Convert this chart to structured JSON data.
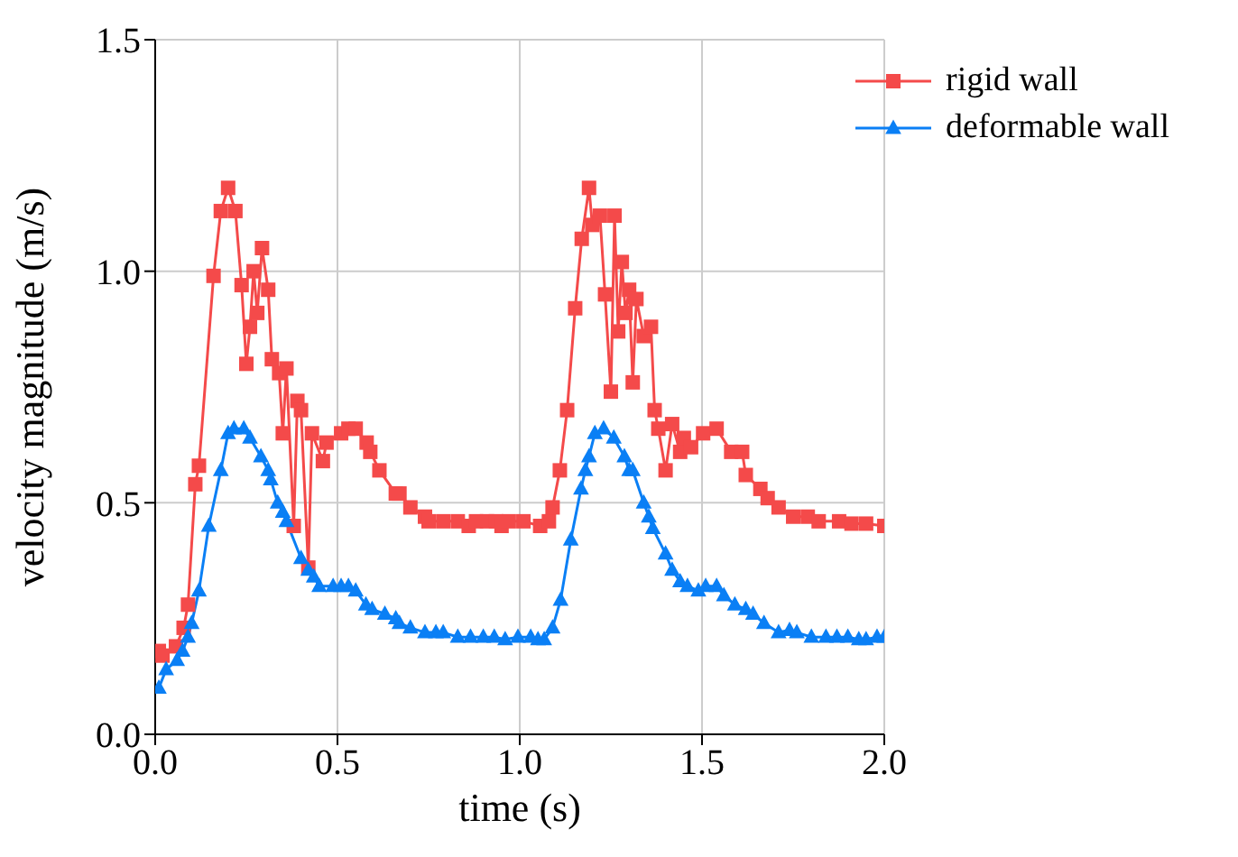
{
  "chart_data": {
    "type": "line",
    "xlabel": "time (s)",
    "ylabel": "velocity magnitude (m/s)",
    "xlim": [
      0,
      2
    ],
    "xticks": [
      {
        "value": 0,
        "label": "0.0"
      },
      {
        "value": 0.5,
        "label": "0.5"
      },
      {
        "value": 1,
        "label": "1.0"
      },
      {
        "value": 1.5,
        "label": "1.5"
      },
      {
        "value": 2,
        "label": "2.0"
      }
    ],
    "ylim": [
      0,
      1.5
    ],
    "yticks": [
      {
        "value": 0,
        "label": "0.0"
      },
      {
        "value": 0.5,
        "label": "0.5"
      },
      {
        "value": 1,
        "label": "1.0"
      },
      {
        "value": 1.5,
        "label": "1.5"
      }
    ],
    "grid": true,
    "legend": "top right",
    "line_style": "solid",
    "series": [
      {
        "name": "rigid wall",
        "color": "#f44a4a",
        "marker": "square",
        "x": [
          0.01,
          0.02,
          0.057,
          0.078,
          0.09,
          0.11,
          0.12,
          0.16,
          0.18,
          0.2,
          0.22,
          0.237,
          0.25,
          0.26,
          0.27,
          0.28,
          0.293,
          0.31,
          0.32,
          0.34,
          0.35,
          0.36,
          0.38,
          0.39,
          0.4,
          0.42,
          0.43,
          0.46,
          0.47,
          0.51,
          0.53,
          0.55,
          0.58,
          0.59,
          0.615,
          0.66,
          0.67,
          0.7,
          0.74,
          0.75,
          0.79,
          0.83,
          0.86,
          0.88,
          0.91,
          0.935,
          0.95,
          0.97,
          1.01,
          1.056,
          1.08,
          1.09,
          1.11,
          1.13,
          1.152,
          1.17,
          1.19,
          1.199,
          1.22,
          1.234,
          1.25,
          1.26,
          1.27,
          1.28,
          1.29,
          1.3,
          1.31,
          1.32,
          1.34,
          1.36,
          1.37,
          1.38,
          1.4,
          1.418,
          1.44,
          1.45,
          1.47,
          1.503,
          1.54,
          1.58,
          1.61,
          1.62,
          1.66,
          1.68,
          1.71,
          1.75,
          1.79,
          1.82,
          1.876,
          1.91,
          1.95,
          2.0
        ],
        "values": [
          0.18,
          0.17,
          0.19,
          0.23,
          0.28,
          0.54,
          0.58,
          0.99,
          1.13,
          1.18,
          1.13,
          0.97,
          0.8,
          0.88,
          1.0,
          0.91,
          1.05,
          0.96,
          0.81,
          0.78,
          0.65,
          0.79,
          0.45,
          0.72,
          0.7,
          0.36,
          0.65,
          0.59,
          0.63,
          0.65,
          0.66,
          0.66,
          0.63,
          0.61,
          0.57,
          0.52,
          0.52,
          0.49,
          0.47,
          0.46,
          0.46,
          0.46,
          0.45,
          0.46,
          0.46,
          0.46,
          0.45,
          0.46,
          0.46,
          0.45,
          0.46,
          0.49,
          0.57,
          0.7,
          0.92,
          1.07,
          1.18,
          1.1,
          1.12,
          0.95,
          0.74,
          1.12,
          0.87,
          1.02,
          0.91,
          0.96,
          0.76,
          0.94,
          0.86,
          0.88,
          0.7,
          0.66,
          0.57,
          0.67,
          0.61,
          0.64,
          0.62,
          0.65,
          0.66,
          0.61,
          0.61,
          0.56,
          0.53,
          0.51,
          0.49,
          0.47,
          0.47,
          0.46,
          0.46,
          0.455,
          0.455,
          0.45
        ]
      },
      {
        "name": "deformable wall",
        "color": "#0a7ff5",
        "marker": "triangle",
        "x": [
          0.01,
          0.03,
          0.06,
          0.075,
          0.09,
          0.1,
          0.12,
          0.147,
          0.18,
          0.2,
          0.216,
          0.243,
          0.26,
          0.29,
          0.31,
          0.317,
          0.336,
          0.35,
          0.36,
          0.4,
          0.42,
          0.435,
          0.45,
          0.488,
          0.51,
          0.53,
          0.55,
          0.578,
          0.595,
          0.63,
          0.66,
          0.67,
          0.7,
          0.74,
          0.77,
          0.79,
          0.83,
          0.865,
          0.9,
          0.93,
          0.96,
          0.995,
          1.03,
          1.05,
          1.067,
          1.09,
          1.112,
          1.14,
          1.168,
          1.18,
          1.19,
          1.206,
          1.23,
          1.258,
          1.287,
          1.3,
          1.31,
          1.34,
          1.354,
          1.365,
          1.4,
          1.418,
          1.44,
          1.46,
          1.49,
          1.51,
          1.54,
          1.56,
          1.59,
          1.62,
          1.64,
          1.67,
          1.71,
          1.74,
          1.76,
          1.8,
          1.84,
          1.87,
          1.9,
          1.93,
          1.95,
          1.98,
          2.0
        ],
        "values": [
          0.1,
          0.14,
          0.16,
          0.18,
          0.21,
          0.24,
          0.31,
          0.45,
          0.57,
          0.65,
          0.66,
          0.66,
          0.64,
          0.6,
          0.57,
          0.55,
          0.5,
          0.48,
          0.46,
          0.38,
          0.355,
          0.34,
          0.32,
          0.32,
          0.32,
          0.32,
          0.31,
          0.28,
          0.27,
          0.26,
          0.25,
          0.24,
          0.23,
          0.22,
          0.22,
          0.22,
          0.21,
          0.21,
          0.21,
          0.21,
          0.205,
          0.21,
          0.21,
          0.205,
          0.205,
          0.23,
          0.29,
          0.42,
          0.53,
          0.57,
          0.6,
          0.65,
          0.66,
          0.64,
          0.6,
          0.57,
          0.57,
          0.5,
          0.47,
          0.445,
          0.39,
          0.355,
          0.33,
          0.32,
          0.31,
          0.32,
          0.32,
          0.3,
          0.28,
          0.27,
          0.26,
          0.24,
          0.22,
          0.225,
          0.22,
          0.21,
          0.21,
          0.21,
          0.21,
          0.205,
          0.205,
          0.21,
          0.21
        ]
      }
    ]
  }
}
